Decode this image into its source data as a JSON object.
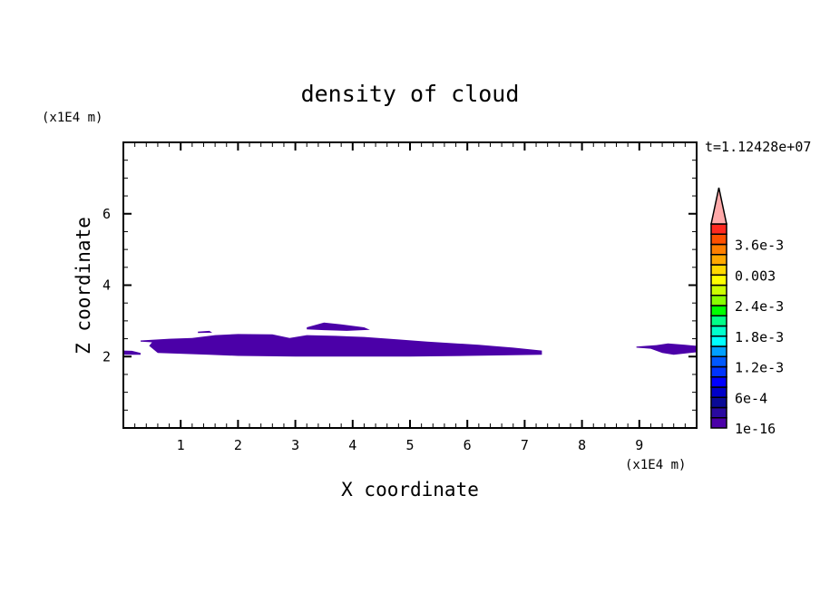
{
  "chart_data": {
    "type": "contour",
    "title": "density of cloud",
    "xlabel": "X coordinate",
    "ylabel": "Z coordinate",
    "x_unit": "(x1E4 m)",
    "y_unit": "(x1E4 m)",
    "time_label": "t=1.12428e+07",
    "xlim": [
      0,
      10
    ],
    "ylim": [
      0,
      8
    ],
    "x_major_ticks": [
      1,
      2,
      3,
      4,
      5,
      6,
      7,
      8,
      9
    ],
    "x_minor_step": 0.2,
    "y_major_ticks": [
      2,
      4,
      6
    ],
    "y_minor_step": 0.5,
    "grid": false,
    "colorbar": {
      "levels": [
        0,
        0.0002,
        0.0004,
        0.0006,
        0.0008,
        0.001,
        0.0012,
        0.0014,
        0.0016,
        0.0018,
        0.002,
        0.0022,
        0.0024,
        0.0026,
        0.0028,
        0.003,
        0.0032,
        0.0034,
        0.0036,
        0.0038
      ],
      "colors": [
        "#4b00a8",
        "#2a0aa0",
        "#0a0a96",
        "#0000c8",
        "#0000ff",
        "#0033ff",
        "#0058ff",
        "#00a0ff",
        "#00ffff",
        "#00ffcc",
        "#00ff88",
        "#00ff00",
        "#88ff00",
        "#ccff00",
        "#ffff00",
        "#ffd800",
        "#ffa800",
        "#ff7f00",
        "#ff5000",
        "#ff2a20"
      ],
      "overflow_color": "#ffaaaa",
      "labels": [
        {
          "level_index": 0,
          "text": "1e-16"
        },
        {
          "level_index": 3,
          "text": "6e-4"
        },
        {
          "level_index": 6,
          "text": "1.2e-3"
        },
        {
          "level_index": 9,
          "text": "1.8e-3"
        },
        {
          "level_index": 12,
          "text": "2.4e-3"
        },
        {
          "level_index": 15,
          "text": "0.003"
        },
        {
          "level_index": 18,
          "text": "3.6e-3"
        }
      ]
    },
    "regions": [
      {
        "level_index": 0,
        "points": [
          [
            0.3,
            2.45
          ],
          [
            0.8,
            2.5
          ],
          [
            1.2,
            2.52
          ],
          [
            1.6,
            2.6
          ],
          [
            2.0,
            2.63
          ],
          [
            2.6,
            2.62
          ],
          [
            2.9,
            2.52
          ],
          [
            3.2,
            2.6
          ],
          [
            3.7,
            2.58
          ],
          [
            4.2,
            2.55
          ],
          [
            4.8,
            2.48
          ],
          [
            5.3,
            2.42
          ],
          [
            6.2,
            2.33
          ],
          [
            6.8,
            2.25
          ],
          [
            7.3,
            2.17
          ],
          [
            7.3,
            2.05
          ],
          [
            6.0,
            2.02
          ],
          [
            5.0,
            2.0
          ],
          [
            4.0,
            2.0
          ],
          [
            3.0,
            2.0
          ],
          [
            2.0,
            2.02
          ],
          [
            1.5,
            2.05
          ],
          [
            0.6,
            2.1
          ],
          [
            0.45,
            2.3
          ],
          [
            0.5,
            2.4
          ],
          [
            0.3,
            2.42
          ]
        ]
      },
      {
        "level_index": 0,
        "points": [
          [
            3.2,
            2.82
          ],
          [
            3.5,
            2.95
          ],
          [
            3.8,
            2.9
          ],
          [
            4.2,
            2.82
          ],
          [
            4.3,
            2.75
          ],
          [
            3.9,
            2.72
          ],
          [
            3.5,
            2.74
          ],
          [
            3.2,
            2.76
          ]
        ]
      },
      {
        "level_index": 0,
        "points": [
          [
            1.3,
            2.7
          ],
          [
            1.5,
            2.72
          ],
          [
            1.55,
            2.67
          ],
          [
            1.3,
            2.66
          ]
        ]
      },
      {
        "level_index": 0,
        "points": [
          [
            0,
            2.17
          ],
          [
            0.15,
            2.16
          ],
          [
            0.3,
            2.1
          ],
          [
            0.3,
            2.05
          ],
          [
            0,
            2.05
          ]
        ]
      },
      {
        "level_index": 0,
        "points": [
          [
            8.95,
            2.28
          ],
          [
            9.3,
            2.32
          ],
          [
            9.5,
            2.37
          ],
          [
            9.8,
            2.33
          ],
          [
            10,
            2.3
          ],
          [
            10,
            2.12
          ],
          [
            9.6,
            2.05
          ],
          [
            9.4,
            2.1
          ],
          [
            9.2,
            2.22
          ],
          [
            8.95,
            2.25
          ]
        ]
      }
    ]
  }
}
